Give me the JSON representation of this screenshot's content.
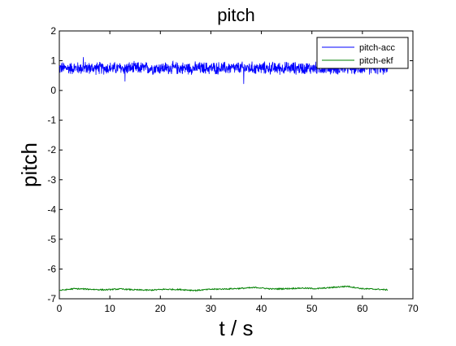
{
  "chart_data": {
    "type": "line",
    "title": "pitch",
    "xlabel": "t / s",
    "ylabel": "pitch",
    "xlim": [
      0,
      70
    ],
    "ylim": [
      -7,
      2
    ],
    "xticks": [
      0,
      10,
      20,
      30,
      40,
      50,
      60,
      70
    ],
    "yticks": [
      2,
      1,
      0,
      -1,
      -2,
      -3,
      -4,
      -5,
      -6,
      -7
    ],
    "grid": false,
    "legend_position": "top-right",
    "series": [
      {
        "name": "pitch-acc",
        "color": "#0000ff",
        "x_range": [
          0,
          65
        ],
        "mean": 0.75,
        "noise_amplitude": 0.25,
        "min": 0.22,
        "max": 1.12
      },
      {
        "name": "pitch-ekf",
        "color": "#008000",
        "x": [
          0,
          3,
          6,
          9,
          12,
          15,
          18,
          21,
          24,
          27,
          30,
          33,
          36,
          39,
          42,
          45,
          48,
          51,
          54,
          57,
          60,
          63,
          65
        ],
        "y": [
          -6.72,
          -6.66,
          -6.68,
          -6.7,
          -6.67,
          -6.7,
          -6.71,
          -6.68,
          -6.69,
          -6.72,
          -6.68,
          -6.67,
          -6.65,
          -6.62,
          -6.67,
          -6.66,
          -6.64,
          -6.66,
          -6.62,
          -6.58,
          -6.66,
          -6.68,
          -6.7
        ]
      }
    ]
  }
}
